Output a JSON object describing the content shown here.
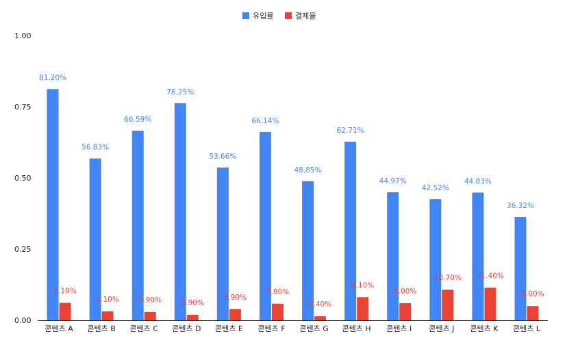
{
  "chart_data": {
    "type": "bar",
    "categories": [
      "콘텐츠 A",
      "콘텐츠 B",
      "콘텐츠 C",
      "콘텐츠 D",
      "콘텐츠 E",
      "콘텐츠 F",
      "콘텐츠 G",
      "콘텐츠 H",
      "콘텐츠 I",
      "콘텐츠 J",
      "콘텐츠 K",
      "콘텐츠 L"
    ],
    "series": [
      {
        "name": "유입률",
        "color": "#4285f4",
        "values": [
          0.812,
          0.5683,
          0.6659,
          0.7625,
          0.5366,
          0.6614,
          0.4885,
          0.6271,
          0.4497,
          0.4252,
          0.4483,
          0.3632
        ],
        "labels": [
          "81.20%",
          "56.83%",
          "66.59%",
          "76.25%",
          "53.66%",
          "66.14%",
          "48.85%",
          "62.71%",
          "44.97%",
          "42.52%",
          "44.83%",
          "36.32%"
        ]
      },
      {
        "name": "결제율",
        "color": "#ea4335",
        "values": [
          0.061,
          0.031,
          0.029,
          0.019,
          0.039,
          0.058,
          0.014,
          0.081,
          0.06,
          0.107,
          0.114,
          0.05
        ],
        "labels": [
          "6.10%",
          "3.10%",
          "2.90%",
          "1.90%",
          "3.90%",
          "5.80%",
          "1.40%",
          "8.10%",
          "6.00%",
          "10.70%",
          "11.40%",
          "5.00%"
        ]
      }
    ],
    "yticks": [
      "0.00",
      "0.25",
      "0.50",
      "0.75",
      "1.00"
    ],
    "ylim": [
      0,
      1
    ],
    "legend_position": "top",
    "grid": false,
    "title": "",
    "xlabel": "",
    "ylabel": ""
  }
}
